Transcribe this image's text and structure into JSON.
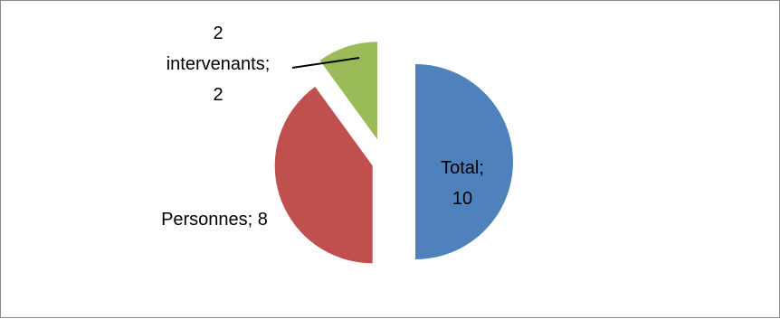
{
  "chart_data": {
    "type": "pie",
    "title": "",
    "exploded": true,
    "legend": "none",
    "slices": [
      {
        "category": "Total",
        "value": 10,
        "color": "#4F81BD",
        "label_lines": [
          "Total;",
          "10"
        ]
      },
      {
        "category": "Personnes",
        "value": 8,
        "color": "#C0504D",
        "label_lines": [
          "Personnes; 8"
        ]
      },
      {
        "category": "2 intervenants",
        "value": 2,
        "color": "#9BBB59",
        "label_lines": [
          "2",
          "intervenants;",
          "2"
        ]
      }
    ]
  }
}
